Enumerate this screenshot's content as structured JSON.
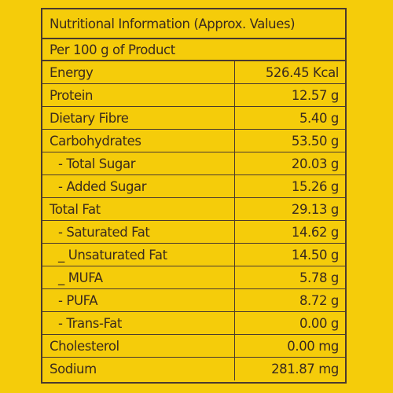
{
  "title": "Nutritional Information (Approx. Values)",
  "serving": "Per 100 g of Product",
  "rows": [
    {
      "name": "Energy",
      "value": "526.45 Kcal",
      "indent": false
    },
    {
      "name": "Protein",
      "value": "12.57 g",
      "indent": false
    },
    {
      "name": "Dietary Fibre",
      "value": "5.40 g",
      "indent": false
    },
    {
      "name": "Carbohydrates",
      "value": "53.50 g",
      "indent": false
    },
    {
      "name": "- Total Sugar",
      "value": "20.03 g",
      "indent": true
    },
    {
      "name": "- Added Sugar",
      "value": "15.26 g",
      "indent": true
    },
    {
      "name": "Total Fat",
      "value": "29.13 g",
      "indent": false
    },
    {
      "name": "- Saturated Fat",
      "value": "14.62 g",
      "indent": true
    },
    {
      "name": "_ Unsaturated Fat",
      "value": "14.50 g",
      "indent": true
    },
    {
      "name": "_ MUFA",
      "value": "5.78 g",
      "indent": true
    },
    {
      "name": "- PUFA",
      "value": "8.72 g",
      "indent": true
    },
    {
      "name": "- Trans-Fat",
      "value": "0.00 g",
      "indent": true
    },
    {
      "name": "Cholesterol",
      "value": "0.00 mg",
      "indent": false
    },
    {
      "name": "Sodium",
      "value": "281.87 mg",
      "indent": false
    }
  ],
  "colors": {
    "background": "#f5cc0a",
    "text": "#3a2a1e",
    "border": "#4a3a2e"
  }
}
